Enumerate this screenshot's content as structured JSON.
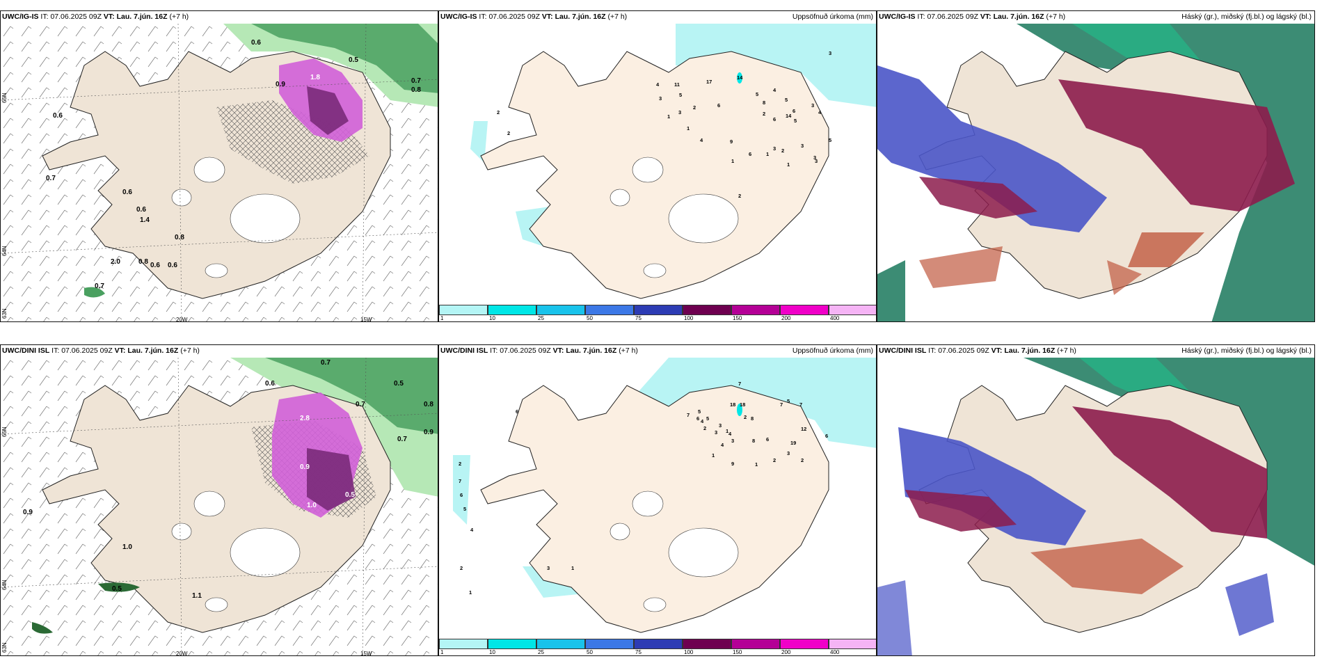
{
  "top_row": {
    "precip_type": {
      "model": "UWC/IG-IS",
      "it_prefix": "IT:",
      "it_value": "07.06.2025 09Z",
      "vt_prefix": "VT:",
      "vt_value": "Lau. 7.jún. 16Z",
      "lead": "(+7 h)",
      "grid_labels": [
        "65N",
        "64N",
        "63N",
        "20W",
        "15W"
      ],
      "values": [
        "0.6",
        "0.5",
        "0.7",
        "0.8",
        "0.6",
        "0.7",
        "0.6",
        "1.4",
        "0.8",
        "2.0",
        "0.8",
        "0.6",
        "0.6",
        "0.7",
        "1.8",
        "0.9",
        "0.6"
      ]
    },
    "accum": {
      "model": "UWC/IG-IS",
      "it_prefix": "IT:",
      "it_value": "07.06.2025 09Z",
      "vt_prefix": "VT:",
      "vt_value": "Lau. 7.jún. 16Z",
      "lead": "(+7 h)",
      "title_right": "Uppsöfnuð úrkoma (mm)",
      "values": [
        "3",
        "14",
        "17",
        "11",
        "4",
        "3",
        "5",
        "6",
        "5",
        "4",
        "8",
        "5",
        "6",
        "6",
        "5",
        "14",
        "3",
        "2",
        "1",
        "3",
        "2",
        "1",
        "4",
        "9",
        "6",
        "1",
        "2",
        "2",
        "5",
        "3",
        "3",
        "1",
        "3",
        "3",
        "1",
        "4",
        "2",
        "2"
      ]
    },
    "clouds": {
      "model": "UWC/IG-IS",
      "it_prefix": "IT:",
      "it_value": "07.06.2025 09Z",
      "vt_prefix": "VT:",
      "vt_value": "Lau. 7.jún. 16Z",
      "lead": "(+7 h)",
      "title_right": "Háský (gr.), miðský (fj.bl.) og lágský (bl.)"
    }
  },
  "bottom_row": {
    "precip_type": {
      "model": "UWC/DINI ISL",
      "it_prefix": "IT:",
      "it_value": "07.06.2025 09Z",
      "vt_prefix": "VT:",
      "vt_value": "Lau. 7.jún. 16Z",
      "lead": "(+7 h)",
      "grid_labels": [
        "65N",
        "64N",
        "63N",
        "20W",
        "15W"
      ],
      "values": [
        "0.7",
        "0.6",
        "0.5",
        "0.8",
        "0.9",
        "0.7",
        "0.9",
        "1.0",
        "0.5",
        "1.1",
        "2.8",
        "0.7",
        "0.5",
        "0.9",
        "1.0"
      ]
    },
    "accum": {
      "model": "UWC/DINI ISL",
      "it_prefix": "IT:",
      "it_value": "07.06.2025 09Z",
      "vt_prefix": "VT:",
      "vt_value": "Lau. 7.jún. 16Z",
      "lead": "(+7 h)",
      "title_right": "Uppsöfnuð úrkoma (mm)",
      "values": [
        "7",
        "18",
        "18",
        "8",
        "7",
        "5",
        "7",
        "12",
        "19",
        "6",
        "2",
        "5",
        "4",
        "2",
        "3",
        "1",
        "7",
        "6",
        "5",
        "3",
        "4",
        "3",
        "8",
        "6",
        "4",
        "3",
        "2",
        "1",
        "2",
        "1",
        "9",
        "3",
        "1",
        "2",
        "1",
        "2",
        "7",
        "6",
        "5",
        "4",
        "6"
      ]
    },
    "clouds": {
      "model": "UWC/DINI ISL",
      "it_prefix": "IT:",
      "it_value": "07.06.2025 09Z",
      "vt_prefix": "VT:",
      "vt_value": "Lau. 7.jún. 16Z",
      "lead": "(+7 h)",
      "title_right": "Háský (gr.), miðský (fj.bl.) og lágský (bl.)"
    }
  },
  "colorbar": {
    "ticks": [
      "1",
      "10",
      "25",
      "50",
      "75",
      "100",
      "150",
      "200",
      "400"
    ],
    "colors": [
      "#b4f5f5",
      "#00e6e6",
      "#19c3eb",
      "#3c78e6",
      "#2d3cb4",
      "#6e0050",
      "#b40096",
      "#f000c8",
      "#f5b4f5"
    ]
  },
  "colors": {
    "land": "#efe4d6",
    "land_accum": "#fbefe2",
    "cyan_precip": "#b8f4f4",
    "green_dark": "#4aa060",
    "green_light": "#b6e8b6",
    "magenta": "#d05fd8",
    "purple": "#7a2a7a",
    "high_cloud": "#3c8c74",
    "mid_cloud": "#8c1c4c",
    "low_cloud": "#4a55c8"
  }
}
